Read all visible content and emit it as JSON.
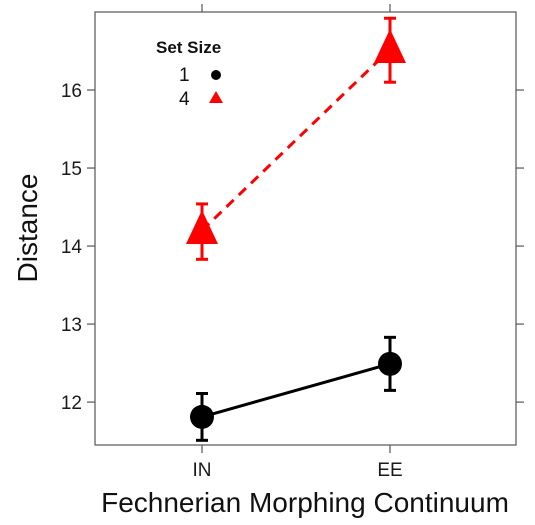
{
  "chart_data": {
    "type": "line",
    "categories": [
      "IN",
      "EE"
    ],
    "xlabel": "Fechnerian Morphing Continuum",
    "ylabel": "Distance",
    "ylim": [
      11.45,
      17.0
    ],
    "yticks": [
      12,
      13,
      14,
      15,
      16
    ],
    "grid": false,
    "legend": {
      "title": "Set Size",
      "placement": "top-left"
    },
    "series": [
      {
        "name": "1",
        "values": [
          11.81,
          12.49
        ],
        "error_low": [
          11.51,
          12.15
        ],
        "error_high": [
          12.11,
          12.83
        ],
        "color": "#000000",
        "marker": "circle",
        "line_style": "solid"
      },
      {
        "name": "4",
        "values": [
          14.2,
          16.52
        ],
        "error_low": [
          13.83,
          16.1
        ],
        "error_high": [
          14.54,
          16.92
        ],
        "color": "#ff0000",
        "marker": "triangle",
        "line_style": "dashed"
      }
    ]
  }
}
